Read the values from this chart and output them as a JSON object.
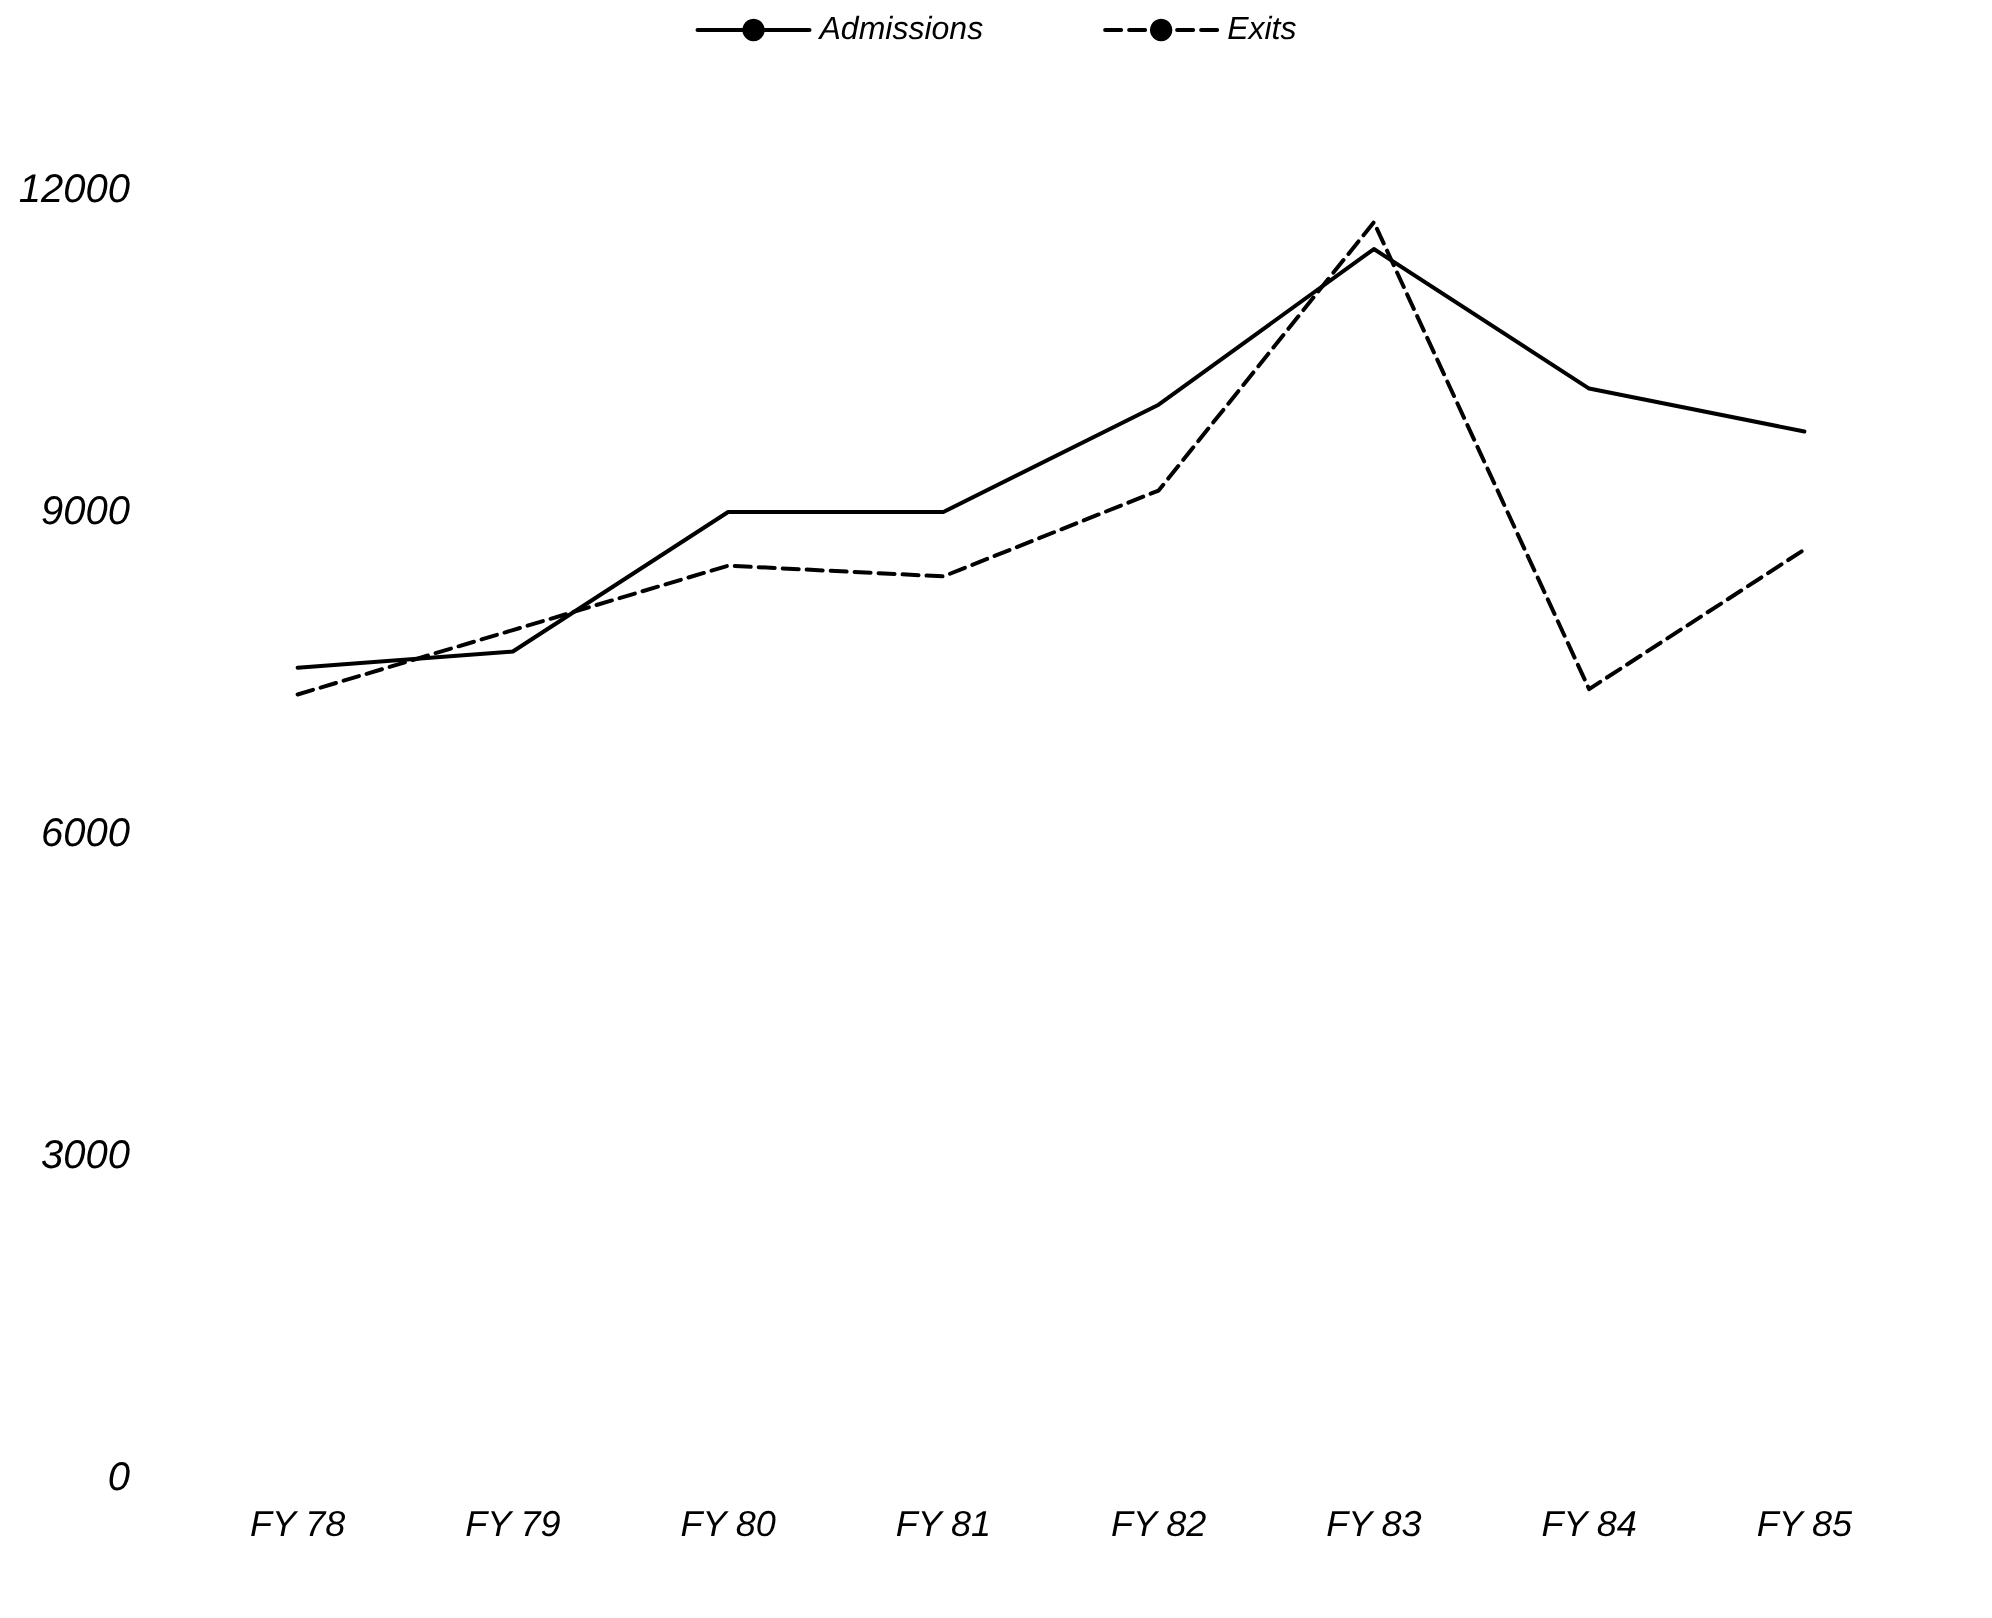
{
  "chart_data": {
    "type": "line",
    "categories": [
      "FY 78",
      "FY 79",
      "FY 80",
      "FY 81",
      "FY 82",
      "FY 83",
      "FY 84",
      "FY 85"
    ],
    "series": [
      {
        "name": "Admissions",
        "color": "#000000",
        "line_style": "solid",
        "values": [
          7550,
          7700,
          9000,
          9000,
          10000,
          11450,
          10150,
          9750
        ]
      },
      {
        "name": "Exits",
        "color": "#000000",
        "line_style": "dashed",
        "values": [
          7300,
          7900,
          8500,
          8400,
          9200,
          11700,
          7350,
          8650
        ]
      }
    ],
    "ylim": [
      0,
      12000
    ],
    "yticks": [
      0,
      3000,
      6000,
      9000,
      12000
    ],
    "grid": false,
    "legend": "top",
    "marker": "none"
  }
}
